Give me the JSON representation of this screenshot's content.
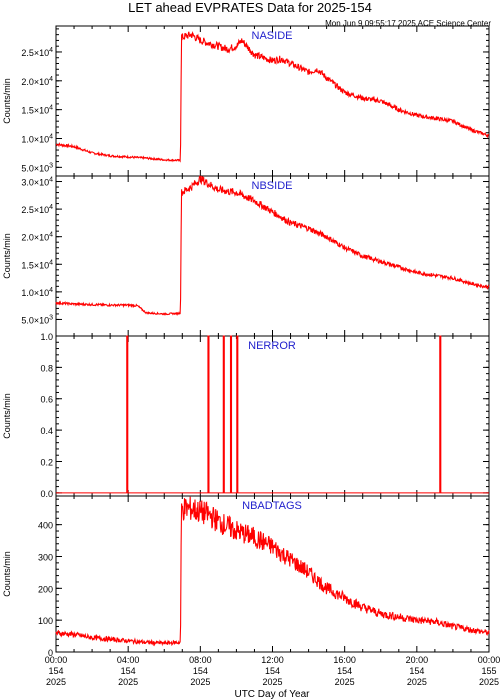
{
  "title": "LET ahead EVPRATES Data for 2025-154",
  "timestamp": "Mon Jun  9 09:55:17 2025 ACE Science Center",
  "x_axis": {
    "label": "UTC Day of Year",
    "ticks": [
      {
        "hour": 0,
        "time": "00:00",
        "doy": "154",
        "year": "2025"
      },
      {
        "hour": 4,
        "time": "04:00",
        "doy": "154",
        "year": "2025"
      },
      {
        "hour": 8,
        "time": "08:00",
        "doy": "154",
        "year": "2025"
      },
      {
        "hour": 12,
        "time": "12:00",
        "doy": "154",
        "year": "2025"
      },
      {
        "hour": 16,
        "time": "16:00",
        "doy": "154",
        "year": "2025"
      },
      {
        "hour": 20,
        "time": "20:00",
        "doy": "154",
        "year": "2025"
      },
      {
        "hour": 24,
        "time": "00:00",
        "doy": "155",
        "year": "2025"
      }
    ]
  },
  "colors": {
    "line": "#ff0000",
    "panel_label": "#1f1fcc",
    "axes": "#000000"
  },
  "chart_data": [
    {
      "type": "line",
      "name": "NASIDE",
      "ylabel": "Counts/min",
      "ylim": [
        3500,
        29500
      ],
      "yticks": [
        {
          "value": 5000,
          "mant": "5.0×10",
          "exp": "3"
        },
        {
          "value": 10000,
          "mant": "1.0×10",
          "exp": "4"
        },
        {
          "value": 15000,
          "mant": "1.5×10",
          "exp": "4"
        },
        {
          "value": 20000,
          "mant": "2.0×10",
          "exp": "4"
        },
        {
          "value": 25000,
          "mant": "2.5×10",
          "exp": "4"
        }
      ],
      "x": [
        0,
        1,
        2,
        3,
        4,
        5,
        6,
        6.9,
        6.95,
        7.5,
        8,
        8.5,
        9,
        9.5,
        10,
        10.3,
        11,
        12,
        12.5,
        13,
        14,
        14.5,
        15,
        16,
        17,
        18,
        19,
        20,
        21,
        22,
        23,
        24
      ],
      "values": [
        9000,
        8600,
        7500,
        7000,
        6800,
        6600,
        6300,
        6200,
        27500,
        28000,
        27000,
        26500,
        26000,
        25500,
        26000,
        27000,
        24500,
        23500,
        23800,
        23000,
        21500,
        22000,
        20500,
        18000,
        17000,
        16500,
        15000,
        14000,
        13500,
        13000,
        11500,
        10500
      ]
    },
    {
      "type": "line",
      "name": "NBSIDE",
      "ylabel": "Counts/min",
      "ylim": [
        2000,
        31000
      ],
      "yticks": [
        {
          "value": 5000,
          "mant": "5.0×10",
          "exp": "3"
        },
        {
          "value": 10000,
          "mant": "1.0×10",
          "exp": "4"
        },
        {
          "value": 15000,
          "mant": "1.5×10",
          "exp": "4"
        },
        {
          "value": 20000,
          "mant": "2.0×10",
          "exp": "4"
        },
        {
          "value": 25000,
          "mant": "2.5×10",
          "exp": "4"
        },
        {
          "value": 30000,
          "mant": "3.0×10",
          "exp": "4"
        }
      ],
      "x": [
        0,
        1,
        2,
        3,
        4,
        4.5,
        5,
        6,
        6.9,
        6.95,
        7.5,
        8,
        8.5,
        9,
        10,
        11,
        12,
        13,
        14,
        15,
        16,
        17,
        18,
        19,
        20,
        21,
        22,
        23,
        24
      ],
      "values": [
        8000,
        7800,
        7700,
        7600,
        7600,
        7500,
        6200,
        6000,
        6100,
        28000,
        29000,
        30500,
        29500,
        28500,
        28000,
        26500,
        24500,
        22500,
        21500,
        20000,
        18000,
        16500,
        15500,
        14500,
        13500,
        13000,
        12500,
        11500,
        10800
      ]
    },
    {
      "type": "line",
      "name": "NERROR",
      "ylabel": "Counts/min",
      "ylim": [
        -0.02,
        1.0
      ],
      "yticks": [
        {
          "value": 0.0,
          "mant": "0.0",
          "exp": ""
        },
        {
          "value": 0.2,
          "mant": "0.2",
          "exp": ""
        },
        {
          "value": 0.4,
          "mant": "0.4",
          "exp": ""
        },
        {
          "value": 0.6,
          "mant": "0.6",
          "exp": ""
        },
        {
          "value": 0.8,
          "mant": "0.8",
          "exp": ""
        },
        {
          "value": 1.0,
          "mant": "1.0",
          "exp": ""
        }
      ],
      "spikes": [
        3.95,
        8.45,
        9.3,
        9.7,
        10.05,
        21.3
      ],
      "baseline": 0
    },
    {
      "type": "line",
      "name": "NBADTAGS",
      "ylabel": "Counts/min",
      "ylim": [
        0,
        490
      ],
      "yticks": [
        {
          "value": 0,
          "mant": "0",
          "exp": ""
        },
        {
          "value": 100,
          "mant": "100",
          "exp": ""
        },
        {
          "value": 200,
          "mant": "200",
          "exp": ""
        },
        {
          "value": 300,
          "mant": "300",
          "exp": ""
        },
        {
          "value": 400,
          "mant": "400",
          "exp": ""
        }
      ],
      "x": [
        0,
        1,
        2,
        3,
        4,
        5,
        6,
        6.9,
        6.95,
        7.5,
        8,
        8.5,
        9,
        10,
        11,
        12,
        13,
        14,
        15,
        16,
        17,
        18,
        19,
        20,
        21,
        22,
        23,
        24
      ],
      "values": [
        60,
        55,
        45,
        40,
        35,
        30,
        28,
        30,
        450,
        450,
        440,
        430,
        410,
        380,
        360,
        330,
        290,
        250,
        200,
        170,
        140,
        120,
        110,
        100,
        95,
        80,
        70,
        60
      ]
    }
  ]
}
